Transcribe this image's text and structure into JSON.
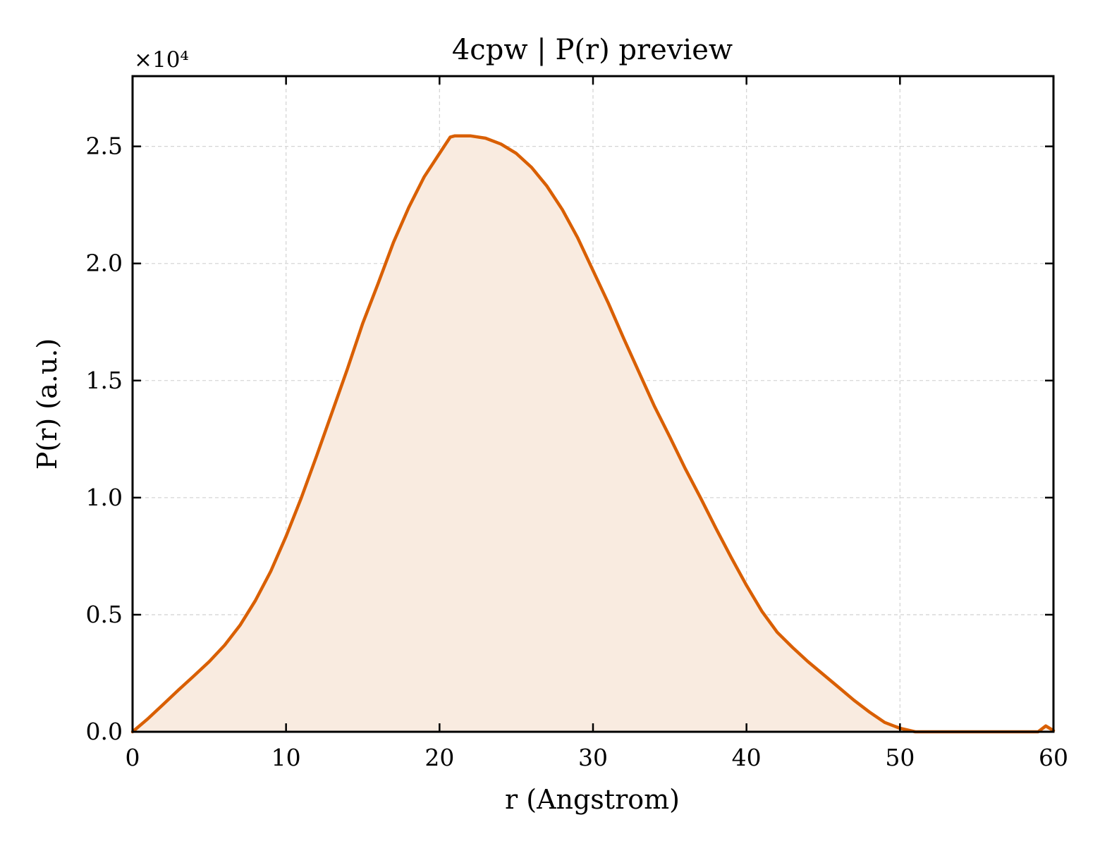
{
  "chart_data": {
    "type": "area",
    "title": "4cpw | P(r) preview",
    "xlabel": "r (Angstrom)",
    "ylabel": "P(r) (a.u.)",
    "y_multiplier": "×10⁴",
    "xlim": [
      0,
      60
    ],
    "ylim": [
      0,
      2.8
    ],
    "xticks": [
      0,
      10,
      20,
      30,
      40,
      50,
      60
    ],
    "yticks": [
      0.0,
      0.5,
      1.0,
      1.5,
      2.0,
      2.5
    ],
    "xtick_labels": [
      "0",
      "10",
      "20",
      "30",
      "40",
      "50",
      "60"
    ],
    "ytick_labels": [
      "0.0",
      "0.5",
      "1.0",
      "1.5",
      "2.0",
      "2.5"
    ],
    "grid": true,
    "legend": false,
    "colors": {
      "line": "#d95f02",
      "fill": "#f9ebe0"
    },
    "series": [
      {
        "x": [
          0,
          1,
          2,
          3,
          4,
          5,
          6,
          7,
          8,
          9,
          10,
          11,
          12,
          13,
          14,
          15,
          16,
          17,
          18,
          19,
          20,
          20.7,
          21,
          22,
          23,
          24,
          25,
          26,
          27,
          28,
          29,
          30,
          31,
          32,
          33,
          34,
          35,
          36,
          37,
          38,
          39,
          40,
          41,
          42,
          43,
          44,
          45,
          46,
          47,
          48,
          49,
          50,
          51,
          52,
          53,
          54,
          55,
          56,
          57,
          58,
          59,
          59.5,
          60
        ],
        "y": [
          0.0,
          0.056,
          0.117,
          0.179,
          0.239,
          0.3,
          0.37,
          0.455,
          0.56,
          0.685,
          0.835,
          1.0,
          1.18,
          1.365,
          1.55,
          1.745,
          1.915,
          2.09,
          2.24,
          2.37,
          2.47,
          2.54,
          2.545,
          2.545,
          2.535,
          2.51,
          2.47,
          2.41,
          2.33,
          2.23,
          2.11,
          1.97,
          1.83,
          1.68,
          1.535,
          1.39,
          1.26,
          1.125,
          1.0,
          0.87,
          0.745,
          0.625,
          0.515,
          0.425,
          0.36,
          0.3,
          0.245,
          0.19,
          0.135,
          0.085,
          0.04,
          0.015,
          0.0,
          0.0,
          0.0,
          0.0,
          0.0,
          0.0,
          0.0,
          0.0,
          0.0,
          0.025,
          0.005
        ]
      }
    ]
  }
}
